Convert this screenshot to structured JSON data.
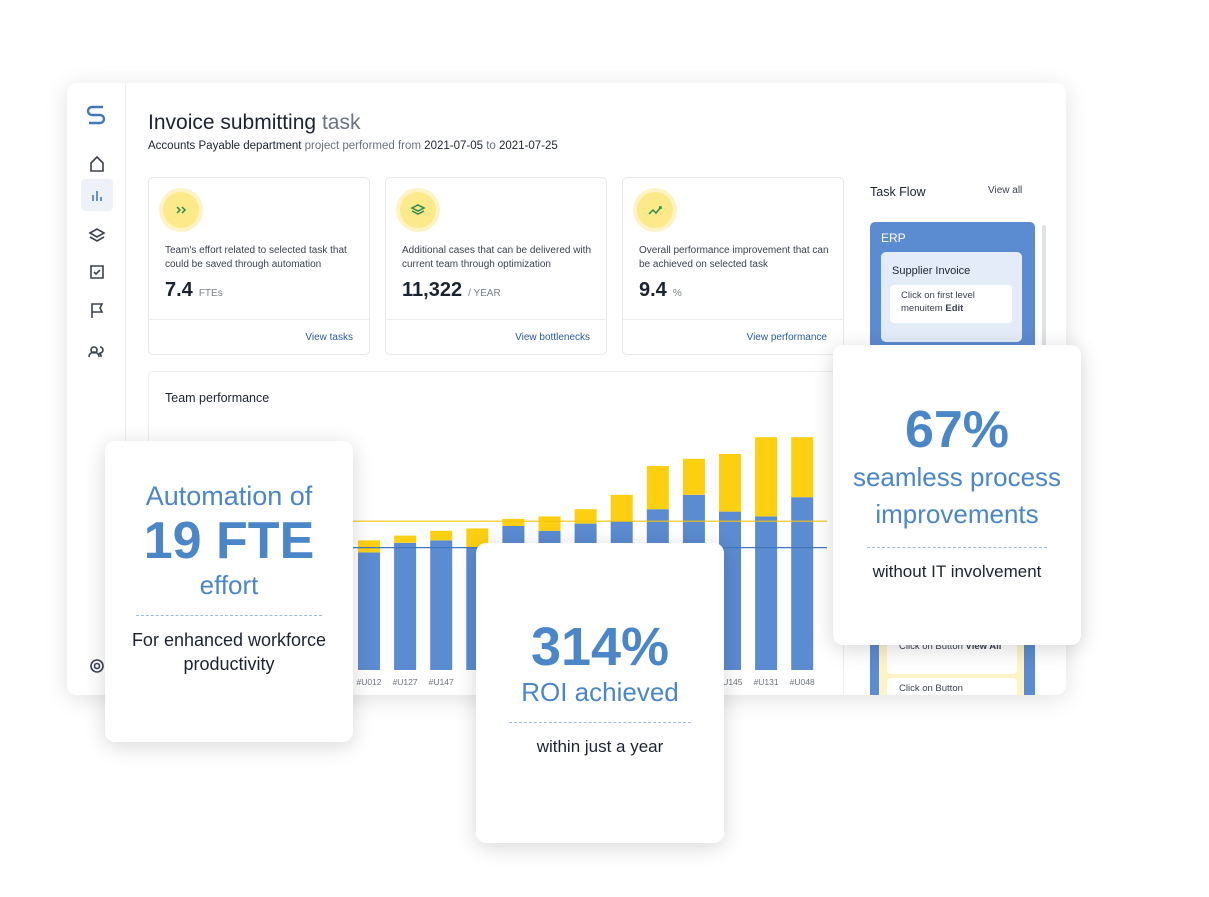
{
  "header": {
    "title": "Invoice submitting",
    "title_suffix": "task",
    "dept": "Accounts Payable department",
    "mid": "project performed from",
    "start": "2021-07-05",
    "to": "to",
    "end": "2021-07-25"
  },
  "kpis": [
    {
      "text": "Team's effort related to selected task that could be saved through automation",
      "value": "7.4",
      "unit": "FTEs",
      "link": "View tasks"
    },
    {
      "text": "Additional cases that can be delivered with current team through optimization",
      "value": "11,322",
      "unit": "/ YEAR",
      "link": "View bottlenecks"
    },
    {
      "text": "Overall performance improvement that can be achieved on selected task",
      "value": "9.4",
      "unit": "%",
      "link": "View performance"
    }
  ],
  "task_flow": {
    "title": "Task Flow",
    "view_all": "View all",
    "system": "ERP",
    "step": "Supplier Invoice",
    "actions": [
      {
        "text": "Click on first level menuitem",
        "bold": "Edit"
      },
      {
        "text": "Click on Button",
        "bold": "View All"
      },
      {
        "text": "Click on Button"
      }
    ]
  },
  "chart_data": {
    "type": "bar",
    "stacked": true,
    "title": "Team performance",
    "categories": [
      "#U012",
      "#U127",
      "#U147",
      null,
      null,
      null,
      null,
      null,
      null,
      null,
      "#U145",
      "#U131",
      "#U048"
    ],
    "series": [
      {
        "color": "#5b8bd0",
        "values": [
          49,
          53,
          54,
          51,
          60,
          58,
          61,
          62,
          67,
          73,
          66,
          64,
          72
        ]
      },
      {
        "color": "#fcd011",
        "values": [
          5,
          3,
          4,
          8,
          3,
          6,
          6,
          11,
          18,
          15,
          24,
          33,
          25
        ]
      }
    ],
    "reference_lines": [
      {
        "color": "#f1c40f",
        "value": 62
      },
      {
        "color": "#3f78c0",
        "value": 51
      }
    ],
    "ylim": [
      0,
      100
    ]
  },
  "callouts": [
    {
      "line1": "Automation of",
      "big": "19 FTE",
      "line3": "effort",
      "sub": "For enhanced workforce productivity"
    },
    {
      "big": "314%",
      "line1": "ROI achieved",
      "sub": "within just a year"
    },
    {
      "big": "67%",
      "line1": "seamless process improvements",
      "sub": "without IT involvement"
    }
  ]
}
